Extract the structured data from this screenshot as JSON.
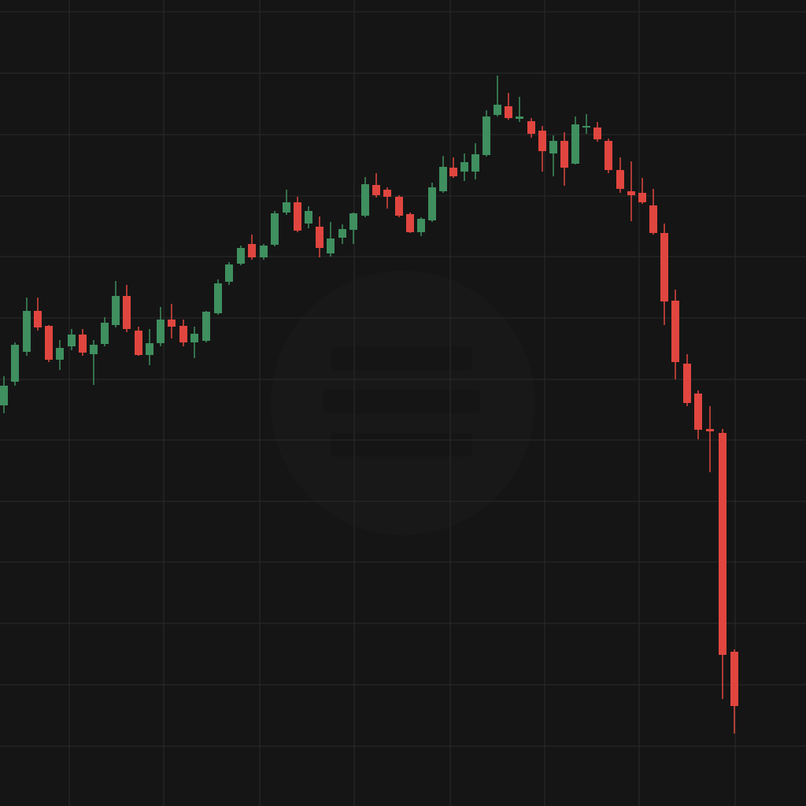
{
  "chart_data": {
    "type": "candlestick",
    "xlim": [
      0,
      1024
    ],
    "ylim": [
      0,
      1024
    ],
    "xticks": [
      88,
      208,
      330,
      450,
      572,
      692,
      812,
      934
    ],
    "yticks": [
      1009,
      931,
      853,
      775,
      698,
      620,
      542,
      465,
      387,
      310,
      232,
      154,
      76
    ],
    "grid": true,
    "grid_color": "#2a2a2a",
    "up_color": "#3f8f5f",
    "down_color": "#e0463f",
    "x": [
      5,
      19,
      34,
      48,
      62,
      76,
      91,
      105,
      119,
      133,
      147,
      161,
      176,
      190,
      204,
      218,
      233,
      247,
      262,
      277,
      291,
      306,
      320,
      335,
      349,
      364,
      378,
      392,
      406,
      420,
      435,
      449,
      464,
      478,
      492,
      507,
      521,
      535,
      549,
      563,
      576,
      590,
      604,
      618,
      632,
      646,
      660,
      675,
      689,
      703,
      717,
      731,
      745,
      759,
      773,
      788,
      802,
      816,
      830,
      844,
      858,
      873,
      887,
      902,
      918,
      933
    ],
    "open": [
      509,
      539,
      577,
      629,
      610,
      567,
      584,
      599,
      574,
      587,
      611,
      648,
      604,
      573,
      588,
      618,
      610,
      589,
      591,
      626,
      666,
      689,
      714,
      697,
      713,
      754,
      767,
      740,
      736,
      702,
      722,
      732,
      750,
      789,
      783,
      774,
      752,
      729,
      744,
      781,
      811,
      806,
      806,
      827,
      878,
      889,
      873,
      870,
      858,
      829,
      845,
      816,
      862,
      862,
      845,
      808,
      781,
      779,
      763,
      728,
      642,
      562,
      524,
      479,
      474,
      196
    ],
    "high": [
      546,
      589,
      646,
      646,
      611,
      592,
      606,
      606,
      592,
      621,
      667,
      662,
      609,
      606,
      634,
      638,
      618,
      609,
      629,
      669,
      691,
      712,
      726,
      714,
      756,
      783,
      774,
      762,
      749,
      742,
      739,
      754,
      799,
      804,
      786,
      776,
      754,
      748,
      792,
      826,
      824,
      829,
      842,
      884,
      928,
      906,
      901,
      874,
      864,
      852,
      856,
      876,
      879,
      869,
      848,
      824,
      819,
      798,
      784,
      740,
      656,
      574,
      528,
      508,
      479,
      199
    ],
    "low": [
      499,
      534,
      572,
      604,
      564,
      554,
      579,
      572,
      535,
      584,
      608,
      602,
      572,
      560,
      584,
      594,
      584,
      569,
      589,
      624,
      662,
      687,
      694,
      694,
      711,
      751,
      729,
      734,
      697,
      698,
      714,
      714,
      748,
      773,
      759,
      748,
      728,
      724,
      742,
      779,
      798,
      794,
      796,
      825,
      876,
      872,
      869,
      849,
      806,
      800,
      788,
      815,
      854,
      844,
      804,
      779,
      743,
      765,
      726,
      611,
      542,
      508,
      466,
      424,
      136,
      92
    ],
    "close": [
      534,
      586,
      629,
      608,
      567,
      582,
      599,
      576,
      586,
      614,
      648,
      606,
      573,
      588,
      618,
      609,
      589,
      600,
      628,
      664,
      688,
      709,
      697,
      712,
      753,
      767,
      731,
      756,
      709,
      721,
      733,
      753,
      790,
      776,
      774,
      750,
      729,
      746,
      786,
      812,
      800,
      818,
      828,
      876,
      891,
      874,
      876,
      854,
      832,
      845,
      811,
      866,
      864,
      847,
      808,
      784,
      776,
      767,
      728,
      641,
      564,
      512,
      478,
      476,
      192,
      127
    ]
  }
}
